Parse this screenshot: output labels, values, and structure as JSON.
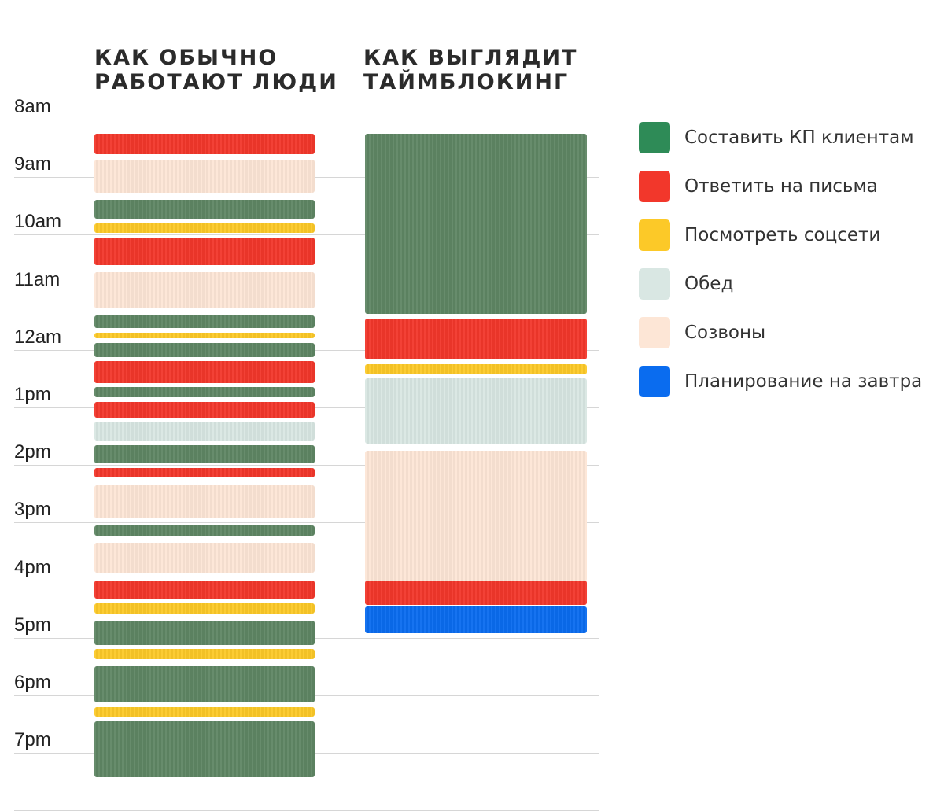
{
  "titles": {
    "left": "КАК ОБЫЧНО\nРАБОТАЮТ ЛЮДИ",
    "right": "КАК ВЫГЛЯДИТ\nТАЙМБЛОКИНГ"
  },
  "time_labels": [
    "8am",
    "9am",
    "10am",
    "11am",
    "12am",
    "1pm",
    "2pm",
    "3pm",
    "4pm",
    "5pm",
    "6pm",
    "7pm"
  ],
  "categories": [
    {
      "key": "kp",
      "label": "Составить КП клиентам",
      "color": "#5f8664",
      "legend_color": "#2e8b57"
    },
    {
      "key": "mail",
      "label": "Ответить на письма",
      "color": "#f2372b",
      "legend_color": "#f2372b"
    },
    {
      "key": "social",
      "label": "Посмотреть соцсети",
      "color": "#fcc928",
      "legend_color": "#fcc928"
    },
    {
      "key": "lunch",
      "label": "Обед",
      "color": "#d9e7e3",
      "legend_color": "#d9e7e3"
    },
    {
      "key": "calls",
      "label": "Созвоны",
      "color": "#fde6d6",
      "legend_color": "#fde6d6"
    },
    {
      "key": "plan",
      "label": "Планирование на завтра",
      "color": "#0a6cef",
      "legend_color": "#0a6cef"
    }
  ],
  "schedules": {
    "usual": [
      {
        "cat": "mail",
        "start": 8.25,
        "end": 8.63
      },
      {
        "cat": "calls",
        "start": 8.7,
        "end": 9.3
      },
      {
        "cat": "kp",
        "start": 9.4,
        "end": 9.75
      },
      {
        "cat": "social",
        "start": 9.8,
        "end": 10.0
      },
      {
        "cat": "mail",
        "start": 10.05,
        "end": 10.55
      },
      {
        "cat": "calls",
        "start": 10.65,
        "end": 11.3
      },
      {
        "cat": "kp",
        "start": 11.4,
        "end": 11.65
      },
      {
        "cat": "social",
        "start": 11.7,
        "end": 11.82
      },
      {
        "cat": "kp",
        "start": 11.88,
        "end": 12.15
      },
      {
        "cat": "mail",
        "start": 12.2,
        "end": 12.6
      },
      {
        "cat": "kp",
        "start": 12.65,
        "end": 12.85
      },
      {
        "cat": "mail",
        "start": 12.9,
        "end": 13.2
      },
      {
        "cat": "lunch",
        "start": 13.25,
        "end": 13.6
      },
      {
        "cat": "kp",
        "start": 13.65,
        "end": 14.0
      },
      {
        "cat": "mail",
        "start": 14.05,
        "end": 14.25
      },
      {
        "cat": "calls",
        "start": 14.35,
        "end": 14.95
      },
      {
        "cat": "kp",
        "start": 15.05,
        "end": 15.25
      },
      {
        "cat": "calls",
        "start": 15.35,
        "end": 15.9
      },
      {
        "cat": "mail",
        "start": 16.0,
        "end": 16.35
      },
      {
        "cat": "social",
        "start": 16.4,
        "end": 16.6
      },
      {
        "cat": "kp",
        "start": 16.7,
        "end": 17.15
      },
      {
        "cat": "social",
        "start": 17.2,
        "end": 17.4
      },
      {
        "cat": "kp",
        "start": 17.5,
        "end": 18.15
      },
      {
        "cat": "social",
        "start": 18.2,
        "end": 18.4
      },
      {
        "cat": "kp",
        "start": 18.45,
        "end": 19.45
      }
    ],
    "timeblocking": [
      {
        "cat": "kp",
        "start": 8.25,
        "end": 11.4
      },
      {
        "cat": "mail",
        "start": 11.45,
        "end": 12.2
      },
      {
        "cat": "social",
        "start": 12.25,
        "end": 12.45
      },
      {
        "cat": "lunch",
        "start": 12.5,
        "end": 13.65
      },
      {
        "cat": "calls",
        "start": 13.75,
        "end": 16.05
      },
      {
        "cat": "mail",
        "start": 16.0,
        "end": 16.45
      },
      {
        "cat": "plan",
        "start": 16.45,
        "end": 16.95
      }
    ]
  }
}
